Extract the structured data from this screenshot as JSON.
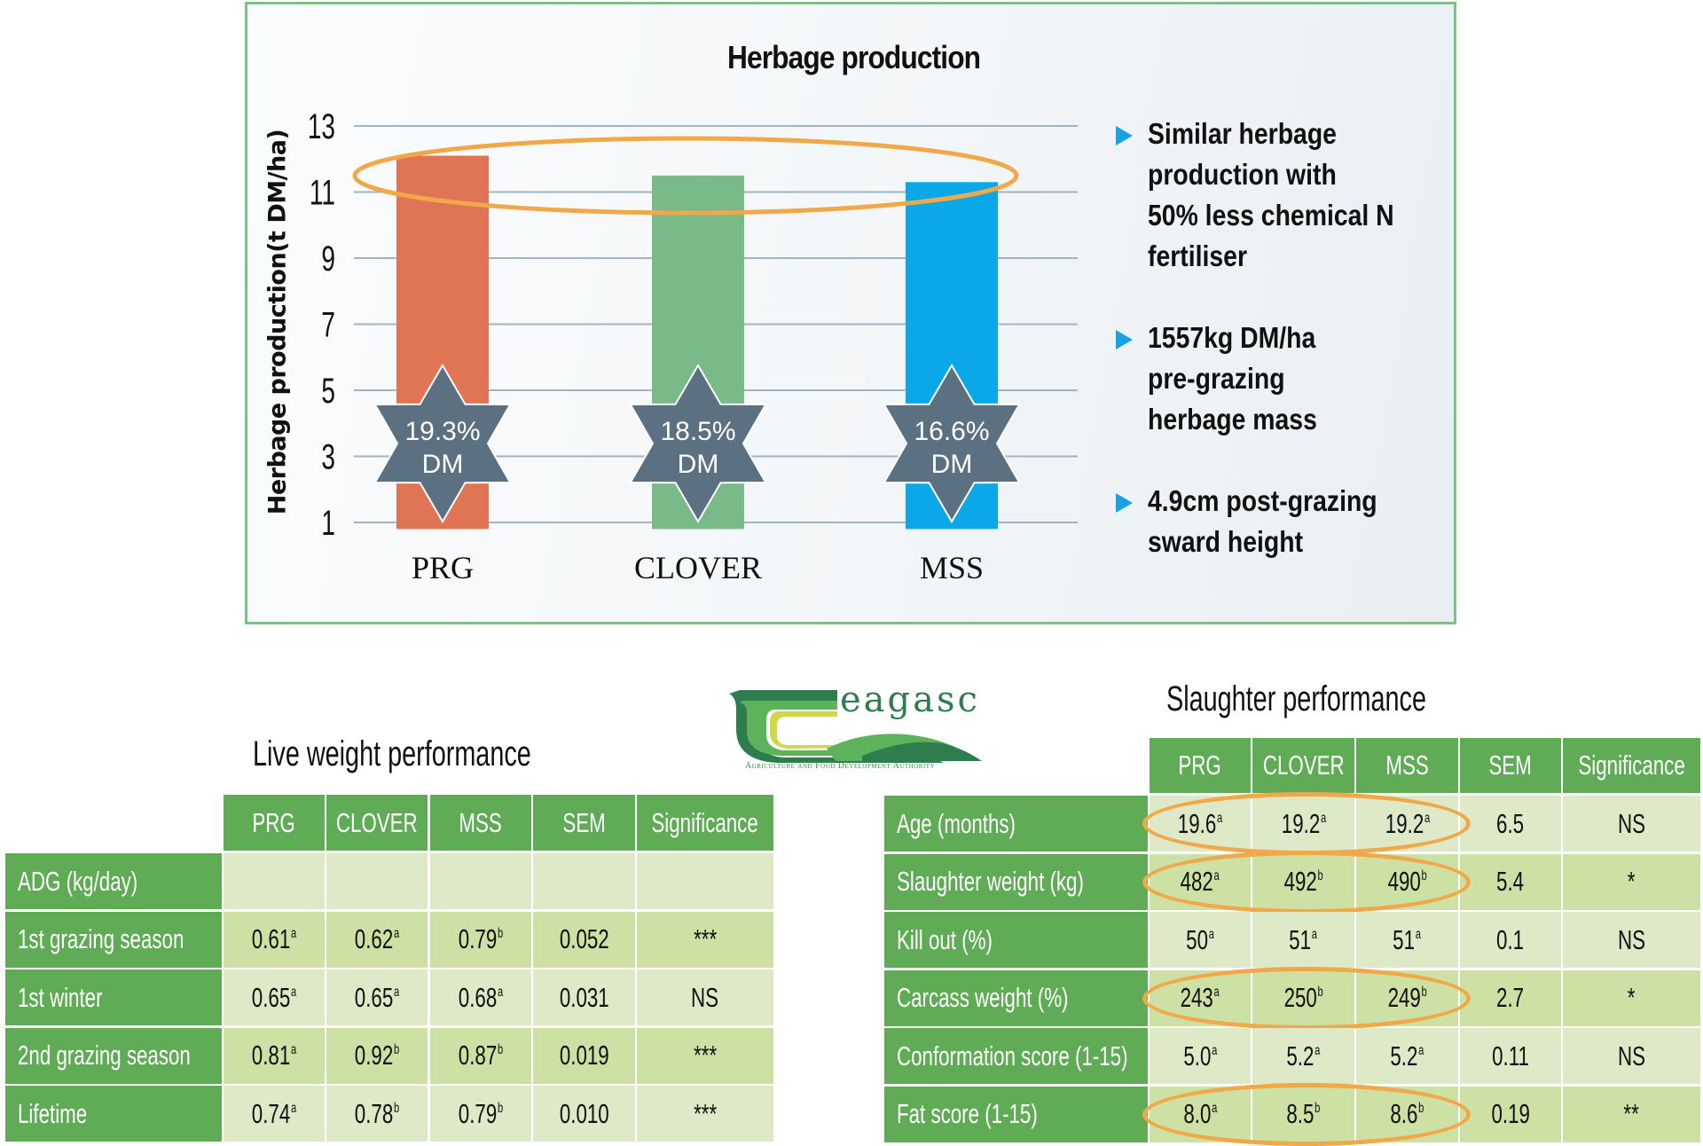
{
  "chart_data": {
    "type": "bar",
    "title": "Herbage production",
    "xlabel": "",
    "ylabel": "Herbage production(t DM/ha)",
    "categories": [
      "PRG",
      "CLOVER",
      "MSS"
    ],
    "values": [
      12.1,
      11.5,
      11.3
    ],
    "colors": [
      "#e07555",
      "#7aba88",
      "#0aa8e8"
    ],
    "yticks": [
      1,
      3,
      5,
      7,
      9,
      11,
      13
    ],
    "ylim": [
      0.8,
      13
    ],
    "grid": true,
    "annotations": [
      {
        "category": "PRG",
        "line1": "19.3%",
        "line2": "DM",
        "shape": "six-point-star"
      },
      {
        "category": "CLOVER",
        "line1": "18.5%",
        "line2": "DM",
        "shape": "six-point-star"
      },
      {
        "category": "MSS",
        "line1": "16.6%",
        "line2": "DM",
        "shape": "six-point-star"
      }
    ],
    "highlight": "ellipse around tops of all three bars",
    "star_color": "#5b7080",
    "highlight_color": "#f0a849"
  },
  "bullets": [
    {
      "icon": "triangle-right-icon",
      "text": "Similar herbage\nproduction with\n50% less chemical N\nfertiliser"
    },
    {
      "icon": "triangle-right-icon",
      "text": "1557kg DM/ha\npre-grazing\nherbage mass"
    },
    {
      "icon": "triangle-right-icon",
      "text": "4.9cm post-grazing\nsward height"
    }
  ],
  "logo": {
    "word": "eagasc",
    "tagline": "Agriculture and Food Development Authority"
  },
  "live_weight": {
    "title": "Live weight performance",
    "columns": [
      "PRG",
      "CLOVER",
      "MSS",
      "SEM",
      "Significance"
    ],
    "rows": [
      {
        "label": "ADG (kg/day)",
        "cells": [
          [
            "",
            ""
          ],
          [
            "",
            ""
          ],
          [
            "",
            ""
          ],
          [
            "",
            ""
          ],
          [
            "",
            ""
          ]
        ]
      },
      {
        "label": "1st grazing season",
        "cells": [
          [
            "0.61",
            "a"
          ],
          [
            "0.62",
            "a"
          ],
          [
            "0.79",
            "b"
          ],
          [
            "0.052",
            ""
          ],
          [
            "***",
            ""
          ]
        ]
      },
      {
        "label": "1st winter",
        "cells": [
          [
            "0.65",
            "a"
          ],
          [
            "0.65",
            "a"
          ],
          [
            "0.68",
            "a"
          ],
          [
            "0.031",
            ""
          ],
          [
            "NS",
            ""
          ]
        ]
      },
      {
        "label": "2nd grazing season",
        "cells": [
          [
            "0.81",
            "a"
          ],
          [
            "0.92",
            "b"
          ],
          [
            "0.87",
            "b"
          ],
          [
            "0.019",
            ""
          ],
          [
            "***",
            ""
          ]
        ]
      },
      {
        "label": "Lifetime",
        "cells": [
          [
            "0.74",
            "a"
          ],
          [
            "0.78",
            "b"
          ],
          [
            "0.79",
            "b"
          ],
          [
            "0.010",
            ""
          ],
          [
            "***",
            ""
          ]
        ]
      }
    ]
  },
  "slaughter": {
    "title": "Slaughter performance",
    "columns": [
      "PRG",
      "CLOVER",
      "MSS",
      "SEM",
      "Significance"
    ],
    "rows": [
      {
        "label": "Age (months)",
        "cells": [
          [
            "19.6",
            "a"
          ],
          [
            "19.2",
            "a"
          ],
          [
            "19.2",
            "a"
          ],
          [
            "6.5",
            ""
          ],
          [
            "NS",
            ""
          ]
        ],
        "highlighted": true
      },
      {
        "label": "Slaughter weight (kg)",
        "cells": [
          [
            "482",
            "a"
          ],
          [
            "492",
            "b"
          ],
          [
            "490",
            "b"
          ],
          [
            "5.4",
            ""
          ],
          [
            "*",
            ""
          ]
        ],
        "highlighted": true
      },
      {
        "label": "Kill out (%)",
        "cells": [
          [
            "50",
            "a"
          ],
          [
            "51",
            "a"
          ],
          [
            "51",
            "a"
          ],
          [
            "0.1",
            ""
          ],
          [
            "NS",
            ""
          ]
        ],
        "highlighted": false
      },
      {
        "label": "Carcass weight (%)",
        "cells": [
          [
            "243",
            "a"
          ],
          [
            "250",
            "b"
          ],
          [
            "249",
            "b"
          ],
          [
            "2.7",
            ""
          ],
          [
            "*",
            ""
          ]
        ],
        "highlighted": true
      },
      {
        "label": "Conformation score (1-15)",
        "cells": [
          [
            "5.0",
            "a"
          ],
          [
            "5.2",
            "a"
          ],
          [
            "5.2",
            "a"
          ],
          [
            "0.11",
            ""
          ],
          [
            "NS",
            ""
          ]
        ],
        "highlighted": false
      },
      {
        "label": "Fat score (1-15)",
        "cells": [
          [
            "8.0",
            "a"
          ],
          [
            "8.5",
            "b"
          ],
          [
            "8.6",
            "b"
          ],
          [
            "0.19",
            ""
          ],
          [
            "**",
            ""
          ]
        ],
        "highlighted": true
      }
    ]
  },
  "colors": {
    "header_green": "#60ab55",
    "row_light": "#dde9c7",
    "row_dark": "#cde1a5",
    "chart_border": "#7cc286",
    "bullet_arrow": "#16a3e0"
  }
}
